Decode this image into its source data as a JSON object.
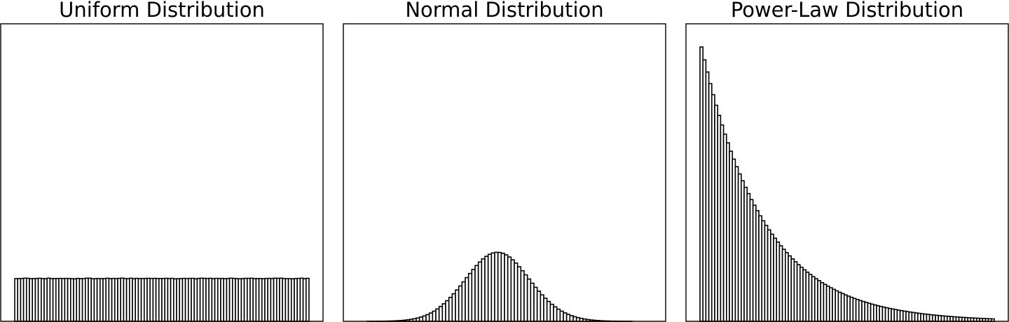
{
  "chart_data": [
    {
      "type": "bar",
      "title": "Uniform Distribution",
      "xlabel": "",
      "ylabel": "",
      "grid": false,
      "ylim": [
        0,
        700
      ],
      "values": [
        100.4,
        100.6,
        100.8,
        101.5,
        101.2,
        100.3,
        100.7,
        100.8,
        101.3,
        100.6,
        100.1,
        101.6,
        100.5,
        100.6,
        100.8,
        101.0,
        100.6,
        101.0,
        100.8,
        100.3,
        99.9,
        100.9,
        100.3,
        100.6,
        101.5,
        101.4,
        100.1,
        100.3,
        100.6,
        100.3,
        100.5,
        101.4,
        100.4,
        100.9,
        100.5,
        101.1,
        101.6,
        100.7,
        100.2,
        101.5,
        100.2,
        101.1,
        100.4,
        100.6,
        100.9,
        101.2,
        100.7,
        101.1,
        100.8,
        100.8,
        100.8,
        101.2,
        100.6,
        101.1,
        99.8,
        100.3,
        100.3,
        101.1,
        100.8,
        100.9,
        101.2,
        99.9,
        101.0,
        101.4,
        101.1,
        100.9,
        101.2,
        100.2,
        101.1,
        100.7,
        100.9,
        100.3,
        100.7,
        101.5,
        101.0,
        100.5,
        100.1,
        100.4,
        101.1,
        101.1,
        101.4,
        100.4,
        100.6,
        100.6,
        100.1,
        100.9,
        101.0,
        100.8,
        101.5,
        101.2,
        101.5,
        100.7,
        100.4,
        100.3,
        100.0,
        100.6,
        101.0,
        101.5,
        100.3,
        101.2
      ]
    },
    {
      "type": "bar",
      "title": "Normal Distribution",
      "xlabel": "",
      "ylabel": "",
      "grid": false,
      "ylim": [
        0,
        700
      ],
      "values": [
        0.0,
        0.0,
        0.0,
        0.1,
        0.1,
        0.1,
        0.2,
        0.3,
        0.4,
        0.6,
        0.8,
        1.1,
        1.5,
        2.0,
        2.7,
        3.6,
        4.7,
        6.1,
        7.8,
        10.0,
        12.6,
        15.8,
        19.5,
        23.9,
        29.0,
        34.8,
        41.3,
        48.5,
        56.3,
        64.8,
        73.8,
        83.2,
        92.9,
        102.8,
        112.6,
        122.1,
        131.2,
        139.5,
        146.8,
        152.9,
        157.7,
        160.8,
        162.3,
        162.0,
        160.1,
        156.4,
        151.2,
        144.6,
        136.9,
        128.3,
        119.0,
        109.3,
        99.4,
        89.6,
        80.0,
        70.9,
        62.2,
        54.2,
        46.7,
        40.0,
        34.0,
        28.6,
        23.9,
        19.8,
        16.3,
        13.3,
        10.8,
        8.6,
        6.8,
        5.4,
        4.2,
        3.2,
        2.5,
        1.9,
        1.4,
        1.0,
        0.8,
        0.5,
        0.4,
        0.3,
        0.2,
        0.1,
        0.1,
        0.1,
        0.0,
        0.0,
        0.0,
        0.0,
        0.0,
        0.0
      ]
    },
    {
      "type": "bar",
      "title": "Power-Law Distribution",
      "xlabel": "",
      "ylabel": "",
      "grid": false,
      "ylim": [
        0,
        700
      ],
      "values": [
        645.5,
        615.3,
        586.6,
        559.3,
        533.2,
        508.3,
        484.6,
        462.0,
        440.4,
        419.9,
        400.3,
        381.6,
        363.8,
        346.8,
        330.7,
        315.2,
        300.5,
        286.5,
        273.1,
        260.4,
        248.2,
        236.6,
        225.6,
        215.1,
        205.0,
        195.5,
        186.4,
        177.7,
        169.4,
        161.5,
        153.9,
        146.8,
        139.9,
        133.4,
        127.2,
        121.2,
        115.6,
        110.2,
        105.1,
        100.2,
        95.5,
        91.0,
        86.8,
        82.7,
        78.9,
        75.2,
        71.7,
        68.3,
        65.2,
        62.1,
        59.2,
        56.5,
        53.8,
        51.3,
        48.9,
        46.7,
        44.5,
        42.4,
        40.4,
        38.5,
        36.7,
        35.0,
        33.4,
        31.8,
        30.3,
        28.9,
        27.6,
        26.3,
        25.1,
        23.9,
        22.8,
        21.7,
        20.7,
        19.7,
        18.8,
        17.9,
        17.1,
        16.3,
        15.5,
        14.8,
        14.1,
        13.4,
        12.8,
        12.2,
        11.7,
        11.1,
        10.6,
        10.1,
        9.6,
        9.2,
        8.8,
        8.3,
        8.0,
        7.6,
        7.2,
        6.9,
        6.6,
        6.3,
        6.0,
        5.7
      ]
    }
  ]
}
